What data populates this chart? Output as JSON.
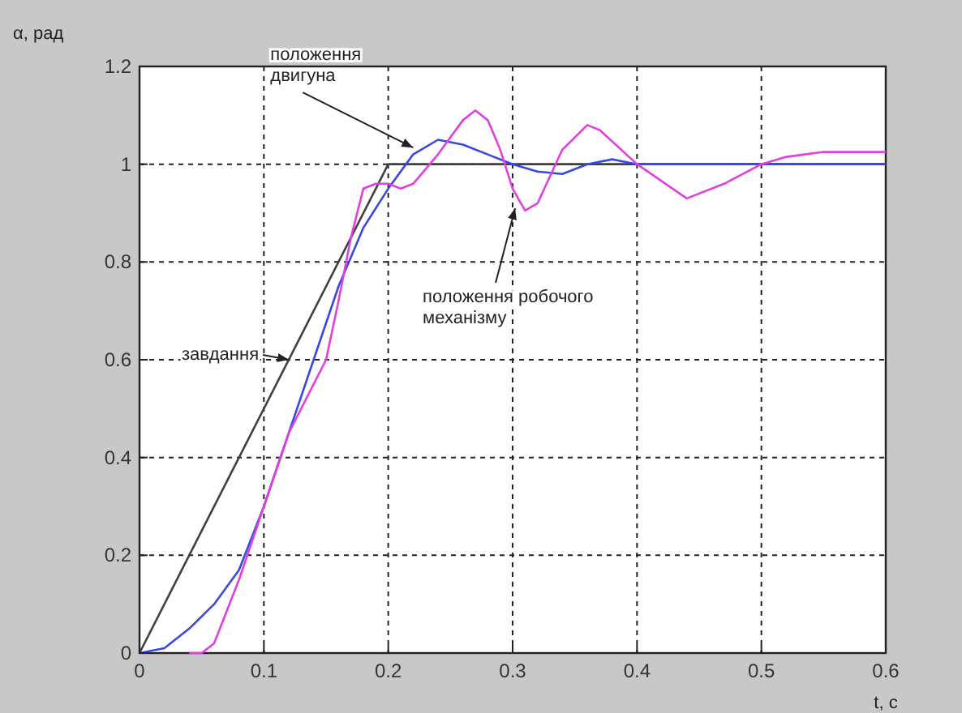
{
  "chart_data": {
    "type": "line",
    "ylabel": "α, рад",
    "xlabel": "t, c",
    "xlim": [
      0,
      0.6
    ],
    "xticks": [
      0,
      0.1,
      0.2,
      0.3,
      0.4,
      0.5,
      0.6
    ],
    "ylim": [
      0,
      1.2
    ],
    "yticks": [
      0,
      0.2,
      0.4,
      0.6,
      0.8,
      1,
      1.2
    ],
    "grid": true,
    "line_style": "solid",
    "marker": "none",
    "series": [
      {
        "color": "#404040",
        "x": [
          0,
          0.2,
          0.6
        ],
        "values": [
          0,
          1,
          1
        ]
      },
      {
        "color": "#3848e0",
        "x": [
          0,
          0.02,
          0.04,
          0.06,
          0.08,
          0.1,
          0.12,
          0.14,
          0.16,
          0.18,
          0.2,
          0.22,
          0.24,
          0.26,
          0.28,
          0.3,
          0.32,
          0.34,
          0.36,
          0.38,
          0.4,
          0.45,
          0.6
        ],
        "values": [
          0,
          0.01,
          0.05,
          0.1,
          0.17,
          0.3,
          0.45,
          0.6,
          0.75,
          0.87,
          0.95,
          1.02,
          1.05,
          1.04,
          1.02,
          1,
          0.985,
          0.98,
          1,
          1.01,
          1,
          1,
          1
        ]
      },
      {
        "color": "#e040e0",
        "x": [
          0.04,
          0.05,
          0.06,
          0.08,
          0.1,
          0.12,
          0.14,
          0.15,
          0.16,
          0.17,
          0.18,
          0.19,
          0.2,
          0.21,
          0.22,
          0.24,
          0.26,
          0.27,
          0.28,
          0.29,
          0.3,
          0.31,
          0.32,
          0.34,
          0.36,
          0.37,
          0.4,
          0.44,
          0.47,
          0.5,
          0.52,
          0.55,
          0.6
        ],
        "values": [
          0,
          0,
          0.02,
          0.15,
          0.3,
          0.45,
          0.55,
          0.6,
          0.72,
          0.85,
          0.95,
          0.96,
          0.96,
          0.95,
          0.96,
          1.02,
          1.09,
          1.11,
          1.09,
          1.03,
          0.95,
          0.905,
          0.92,
          1.03,
          1.08,
          1.07,
          1,
          0.93,
          0.96,
          1,
          1.015,
          1.025,
          1.025
        ]
      }
    ],
    "annotations": [
      {
        "text": "положення\nдвигуна",
        "x": 0.22,
        "y": 1.034
      },
      {
        "text": "положення робочого\nмеханізму",
        "x": 0.302,
        "y": 0.91
      },
      {
        "text": "завдання",
        "x": 0.12,
        "y": 0.6
      }
    ]
  }
}
